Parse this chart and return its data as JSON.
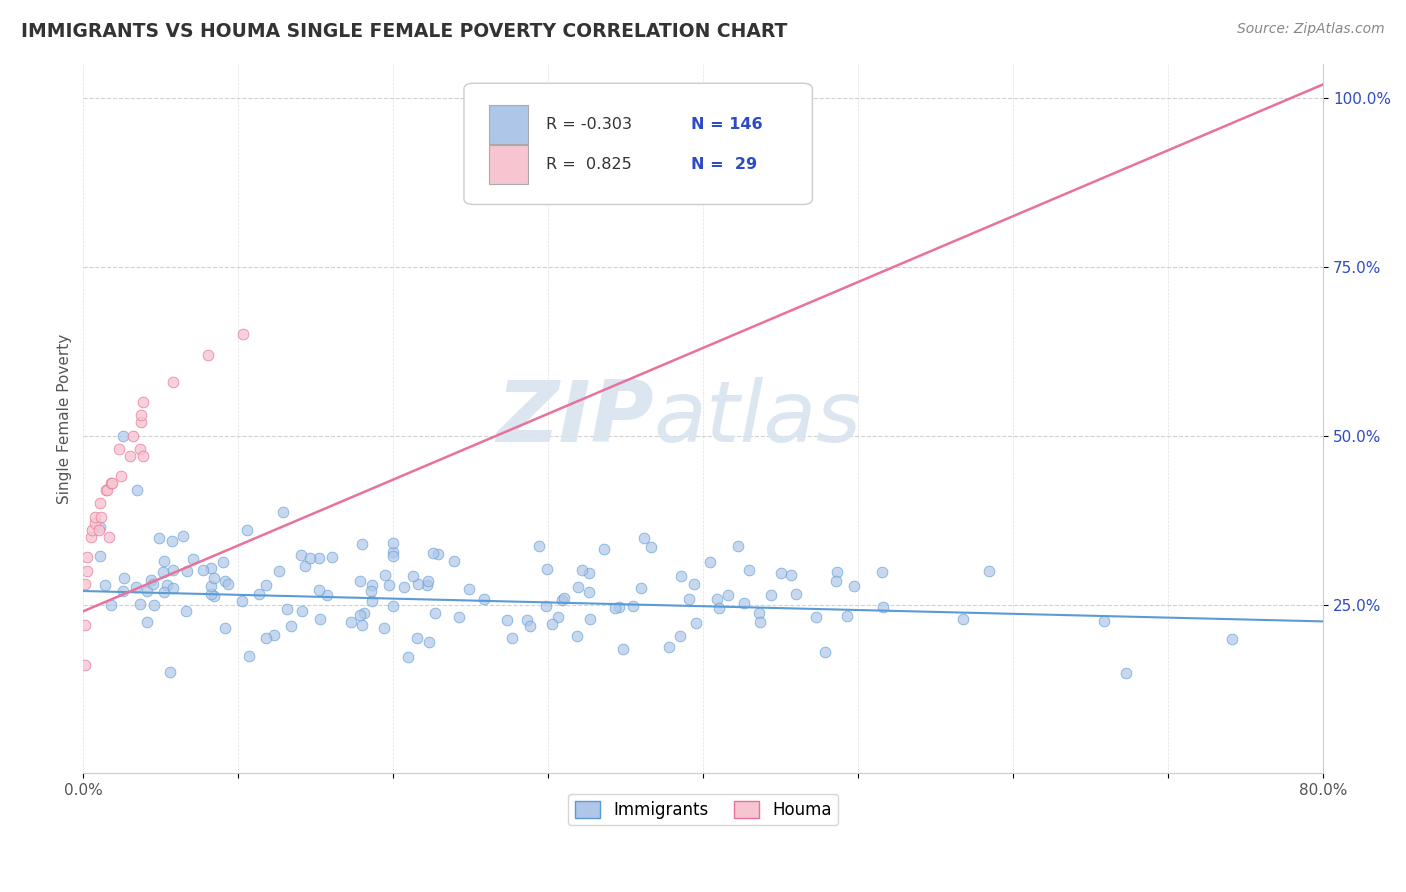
{
  "title": "IMMIGRANTS VS HOUMA SINGLE FEMALE POVERTY CORRELATION CHART",
  "source_text": "Source: ZipAtlas.com",
  "ylabel": "Single Female Poverty",
  "watermark_zip": "ZIP",
  "watermark_atlas": "atlas",
  "xmin": 0.0,
  "xmax": 0.8,
  "ymin": 0.0,
  "ymax": 1.05,
  "yticks": [
    0.25,
    0.5,
    0.75,
    1.0
  ],
  "ytick_labels": [
    "25.0%",
    "50.0%",
    "75.0%",
    "100.0%"
  ],
  "xtick_labels": [
    "0.0%",
    "",
    "",
    "",
    "",
    "",
    "",
    "",
    "80.0%"
  ],
  "immigrants_color": "#aec6e8",
  "immigrants_edge_color": "#5b9bd5",
  "houma_color": "#f7c5d0",
  "houma_edge_color": "#e8729a",
  "immigrants_line_color": "#5b9bd5",
  "houma_line_color": "#e8729a",
  "legend_blue_color": "#2E4BC6",
  "legend_r_color": "#333333",
  "background_color": "#ffffff",
  "grid_color": "#cccccc",
  "watermark_color": "#d8e4f0",
  "title_color": "#333333",
  "source_color": "#888888",
  "ylabel_color": "#555555",
  "tick_color": "#555555",
  "immigrants_N": 146,
  "houma_N": 29,
  "imm_line_x0": 0.0,
  "imm_line_x1": 0.8,
  "imm_line_y0": 0.27,
  "imm_line_y1": 0.225,
  "houma_line_x0": 0.0,
  "houma_line_x1": 0.8,
  "houma_line_y0": 0.24,
  "houma_line_y1": 1.02
}
